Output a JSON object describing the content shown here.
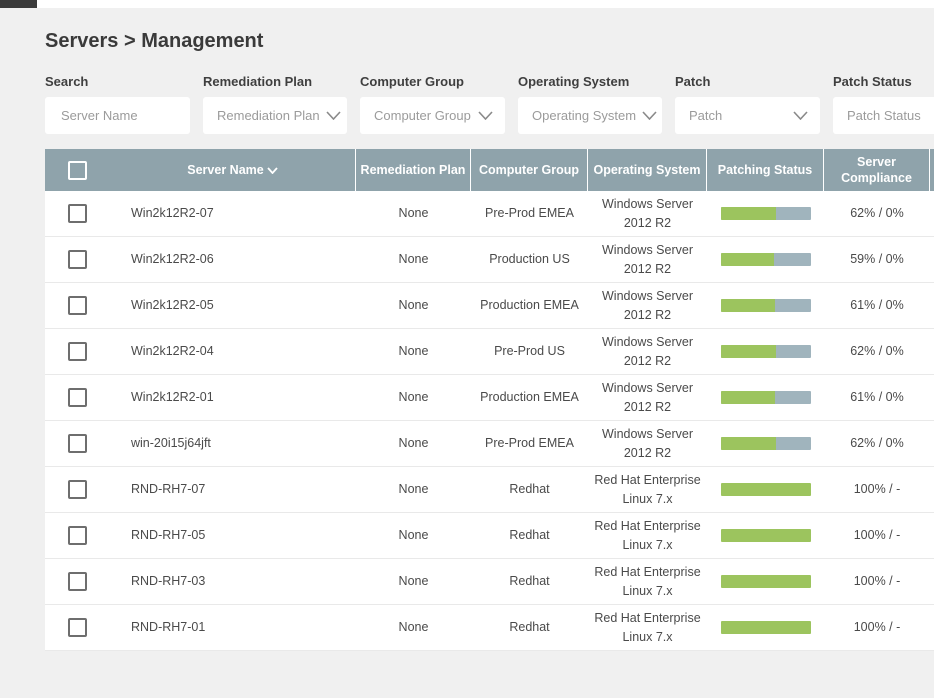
{
  "page_title": "Servers > Management",
  "filters": [
    {
      "label": "Search",
      "placeholder": "Server Name",
      "type": "input"
    },
    {
      "label": "Remediation Plan",
      "placeholder": "Remediation Plan",
      "type": "select"
    },
    {
      "label": "Computer Group",
      "placeholder": "Computer Group",
      "type": "select"
    },
    {
      "label": "Operating System",
      "placeholder": "Operating System",
      "type": "select"
    },
    {
      "label": "Patch",
      "placeholder": "Patch",
      "type": "select"
    },
    {
      "label": "Patch Status",
      "placeholder": "Patch Status",
      "type": "select"
    }
  ],
  "table": {
    "header": {
      "select_all_checked": false,
      "columns": [
        {
          "label": "Server Name",
          "sorted": "desc"
        },
        {
          "label": "Remediation Plan"
        },
        {
          "label": "Computer Group"
        },
        {
          "label": "Operating System"
        },
        {
          "label": "Patching Status"
        },
        {
          "label": "Server Compliance"
        }
      ]
    },
    "rows": [
      {
        "checked": false,
        "server_name": "Win2k12R2-07",
        "remediation_plan": "None",
        "computer_group": "Pre-Prod EMEA",
        "operating_system": "Windows Server 2012 R2",
        "patching_pct": 62,
        "server_compliance": "62% / 0%"
      },
      {
        "checked": false,
        "server_name": "Win2k12R2-06",
        "remediation_plan": "None",
        "computer_group": "Production US",
        "operating_system": "Windows Server 2012 R2",
        "patching_pct": 59,
        "server_compliance": "59% / 0%"
      },
      {
        "checked": false,
        "server_name": "Win2k12R2-05",
        "remediation_plan": "None",
        "computer_group": "Production EMEA",
        "operating_system": "Windows Server 2012 R2",
        "patching_pct": 61,
        "server_compliance": "61% / 0%"
      },
      {
        "checked": false,
        "server_name": "Win2k12R2-04",
        "remediation_plan": "None",
        "computer_group": "Pre-Prod US",
        "operating_system": "Windows Server 2012 R2",
        "patching_pct": 62,
        "server_compliance": "62% / 0%"
      },
      {
        "checked": false,
        "server_name": "Win2k12R2-01",
        "remediation_plan": "None",
        "computer_group": "Production EMEA",
        "operating_system": "Windows Server 2012 R2",
        "patching_pct": 61,
        "server_compliance": "61% / 0%"
      },
      {
        "checked": false,
        "server_name": "win-20i15j64jft",
        "remediation_plan": "None",
        "computer_group": "Pre-Prod EMEA",
        "operating_system": "Windows Server 2012 R2",
        "patching_pct": 62,
        "server_compliance": "62% / 0%"
      },
      {
        "checked": false,
        "server_name": "RND-RH7-07",
        "remediation_plan": "None",
        "computer_group": "Redhat",
        "operating_system": "Red Hat Enterprise Linux 7.x",
        "patching_pct": 100,
        "server_compliance": "100% / -"
      },
      {
        "checked": false,
        "server_name": "RND-RH7-05",
        "remediation_plan": "None",
        "computer_group": "Redhat",
        "operating_system": "Red Hat Enterprise Linux 7.x",
        "patching_pct": 100,
        "server_compliance": "100% / -"
      },
      {
        "checked": false,
        "server_name": "RND-RH7-03",
        "remediation_plan": "None",
        "computer_group": "Redhat",
        "operating_system": "Red Hat Enterprise Linux 7.x",
        "patching_pct": 100,
        "server_compliance": "100% / -"
      },
      {
        "checked": false,
        "server_name": "RND-RH7-01",
        "remediation_plan": "None",
        "computer_group": "Redhat",
        "operating_system": "Red Hat Enterprise Linux 7.x",
        "patching_pct": 100,
        "server_compliance": "100% / -"
      }
    ]
  },
  "colors": {
    "header_bg": "#8fa3ab",
    "bar_green": "#9cc45e",
    "bar_gray": "#a0b4bd",
    "page_bg": "#f0f0f0"
  }
}
